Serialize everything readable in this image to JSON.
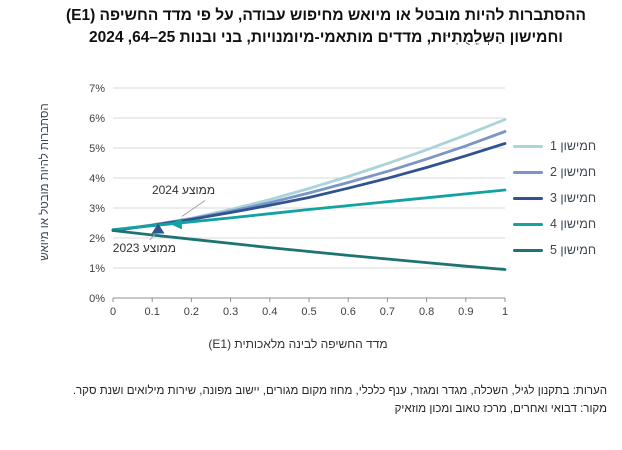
{
  "title": {
    "line1": "ההסתברות להיות מובטל או מיואש מחיפוש עבודה, על פי מדד החשיפה (E1)",
    "line2": "וחמישון הַשְּלֵמֻתִיּות, מדדים מותאמי-מיומנויות, בני ובנות 25–64, 2024"
  },
  "notes": {
    "line1": "הערות: בתקנון לגיל, השכלה, מגדר ומגזר, ענף כלכלי, מחוז מקום מגורים, יישוב מפונה, שירות מילואים ושנת סקר.",
    "line2": "מקור: דבואי ואחרים, מרכז טאוב ומכון מוזאיק"
  },
  "chart_data": {
    "type": "line",
    "title": "ההסתברות להיות מובטל או מיואש מחיפוש עבודה, על פי מדד החשיפה (E1) וחמישון הַשְּלֵמֻתִיּות, מדדים מותאמי-מיומנויות, בני ובנות 25–64, 2024",
    "xlabel": "מדד החשיפה לבינה מלאכותית (E1)",
    "ylabel": "הסתברות להיות מובטל או מיואש",
    "xlim": [
      0,
      1
    ],
    "ylim": [
      0,
      7
    ],
    "grid": "horizontal",
    "legend_position": "right",
    "x": [
      0,
      0.1,
      0.2,
      0.3,
      0.4,
      0.5,
      0.6,
      0.7,
      0.8,
      0.9,
      1
    ],
    "x_ticks": [
      0,
      0.1,
      0.2,
      0.3,
      0.4,
      0.5,
      0.6,
      0.7,
      0.8,
      0.9,
      1
    ],
    "y_tick_suffix": "%",
    "series": [
      {
        "name": "חמישון 1",
        "color": "#a9d4da",
        "values": [
          2.25,
          2.44,
          2.66,
          2.95,
          3.28,
          3.65,
          4.05,
          4.48,
          4.94,
          5.43,
          5.95
        ]
      },
      {
        "name": "חמישון 2",
        "color": "#7b96c6",
        "values": [
          2.25,
          2.43,
          2.64,
          2.89,
          3.18,
          3.5,
          3.85,
          4.22,
          4.63,
          5.07,
          5.55
        ]
      },
      {
        "name": "חמישון 3",
        "color": "#31538e",
        "values": [
          2.25,
          2.42,
          2.62,
          2.85,
          3.09,
          3.35,
          3.66,
          3.99,
          4.35,
          4.74,
          5.15
        ]
      },
      {
        "name": "חמישון 4",
        "color": "#12a3a1",
        "values": [
          2.28,
          2.41,
          2.54,
          2.67,
          2.81,
          2.95,
          3.08,
          3.21,
          3.34,
          3.47,
          3.6
        ]
      },
      {
        "name": "חמישון 5",
        "color": "#1d7472",
        "values": [
          2.25,
          2.1,
          1.96,
          1.82,
          1.68,
          1.55,
          1.42,
          1.3,
          1.18,
          1.06,
          0.95
        ]
      }
    ],
    "annotations": [
      {
        "text": "ממוצע 2024",
        "text_x": 0.18,
        "text_y": 3.6,
        "marker": "triangle-left",
        "color": "#12a3a1",
        "x": 0.163,
        "y": 2.47,
        "leader": [
          0.235,
          3.25,
          0.176,
          2.72
        ]
      },
      {
        "text": "ממוצע 2023",
        "text_x": 0.08,
        "text_y": 1.68,
        "marker": "triangle-up",
        "color": "#31538e",
        "x": 0.115,
        "y": 2.3,
        "leader": [
          0.094,
          1.93,
          0.112,
          2.2
        ]
      }
    ],
    "axis_color": "#8f8f8f",
    "grid_color": "#d9d9d9"
  }
}
